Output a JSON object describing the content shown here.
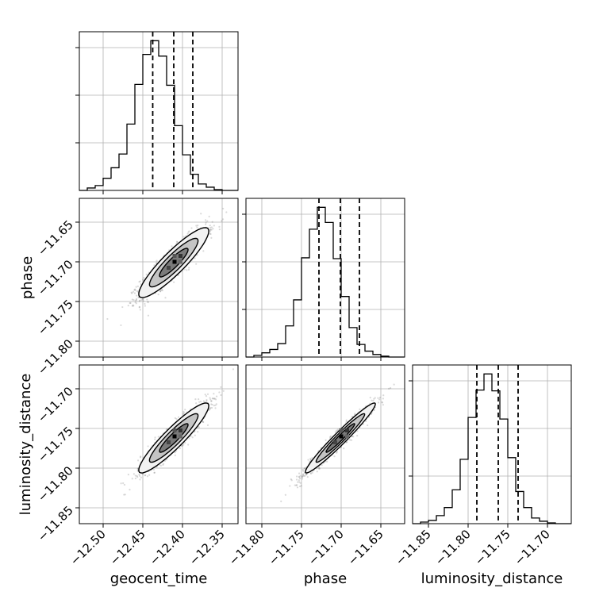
{
  "chart_data": {
    "type": "corner",
    "parameters": [
      "geocent_time",
      "phase",
      "luminosity_distance"
    ],
    "axis_ranges": {
      "geocent_time": [
        -12.53,
        -12.33
      ],
      "phase": [
        -11.82,
        -11.62
      ],
      "luminosity_distance": [
        -11.87,
        -11.67
      ]
    },
    "tick_labels": {
      "geocent_time": [
        "−12.50",
        "−12.45",
        "−12.40",
        "−12.35"
      ],
      "phase": [
        "−11.80",
        "−11.75",
        "−11.70",
        "−11.65"
      ],
      "luminosity_distance": [
        "−11.85",
        "−11.80",
        "−11.75",
        "−11.70"
      ]
    },
    "tick_values": {
      "geocent_time": [
        -12.5,
        -12.45,
        -12.4,
        -12.35
      ],
      "phase": [
        -11.8,
        -11.75,
        -11.7,
        -11.65
      ],
      "luminosity_distance": [
        -11.85,
        -11.8,
        -11.75,
        -11.7
      ]
    },
    "quantiles": {
      "geocent_time": [
        -12.4375,
        -12.411,
        -12.387
      ],
      "phase": [
        -11.728,
        -11.701,
        -11.677
      ],
      "luminosity_distance": [
        -11.789,
        -11.762,
        -11.737
      ]
    },
    "histograms": {
      "geocent_time": {
        "start": -12.53,
        "bin_width": 0.01,
        "counts": [
          0,
          3,
          6,
          15,
          28,
          45,
          82,
          131,
          168,
          185,
          166,
          130,
          80,
          44,
          20,
          8,
          4,
          1,
          0,
          0
        ]
      },
      "phase": {
        "start": -11.82,
        "bin_width": 0.01,
        "counts": [
          0,
          2,
          5,
          9,
          16,
          37,
          68,
          118,
          152,
          178,
          160,
          117,
          72,
          35,
          15,
          7,
          3,
          1,
          0,
          0
        ]
      },
      "luminosity_distance": {
        "start": -11.87,
        "bin_width": 0.01,
        "counts": [
          0,
          2,
          4,
          10,
          20,
          42,
          80,
          132,
          166,
          186,
          165,
          130,
          82,
          40,
          20,
          7,
          3,
          1,
          0,
          0
        ]
      }
    },
    "joint_2d": [
      {
        "x": "geocent_time",
        "y": "phase",
        "mean_x": -12.411,
        "mean_y": -11.701,
        "std_x": 0.018,
        "std_y": 0.018,
        "corr": 0.9,
        "peak": [
          -12.41,
          -11.7
        ]
      },
      {
        "x": "geocent_time",
        "y": "luminosity_distance",
        "mean_x": -12.411,
        "mean_y": -11.762,
        "std_x": 0.018,
        "std_y": 0.018,
        "corr": 0.92,
        "peak": [
          -12.41,
          -11.76
        ]
      },
      {
        "x": "phase",
        "y": "luminosity_distance",
        "mean_x": -11.701,
        "mean_y": -11.762,
        "std_x": 0.018,
        "std_y": 0.018,
        "corr": 0.97,
        "peak": [
          -11.7,
          -11.76
        ]
      }
    ],
    "grid": true,
    "colors": {
      "contour": "#000000",
      "points": "#555555",
      "grid": "#b0b0b0",
      "quantile": "#000000"
    }
  }
}
